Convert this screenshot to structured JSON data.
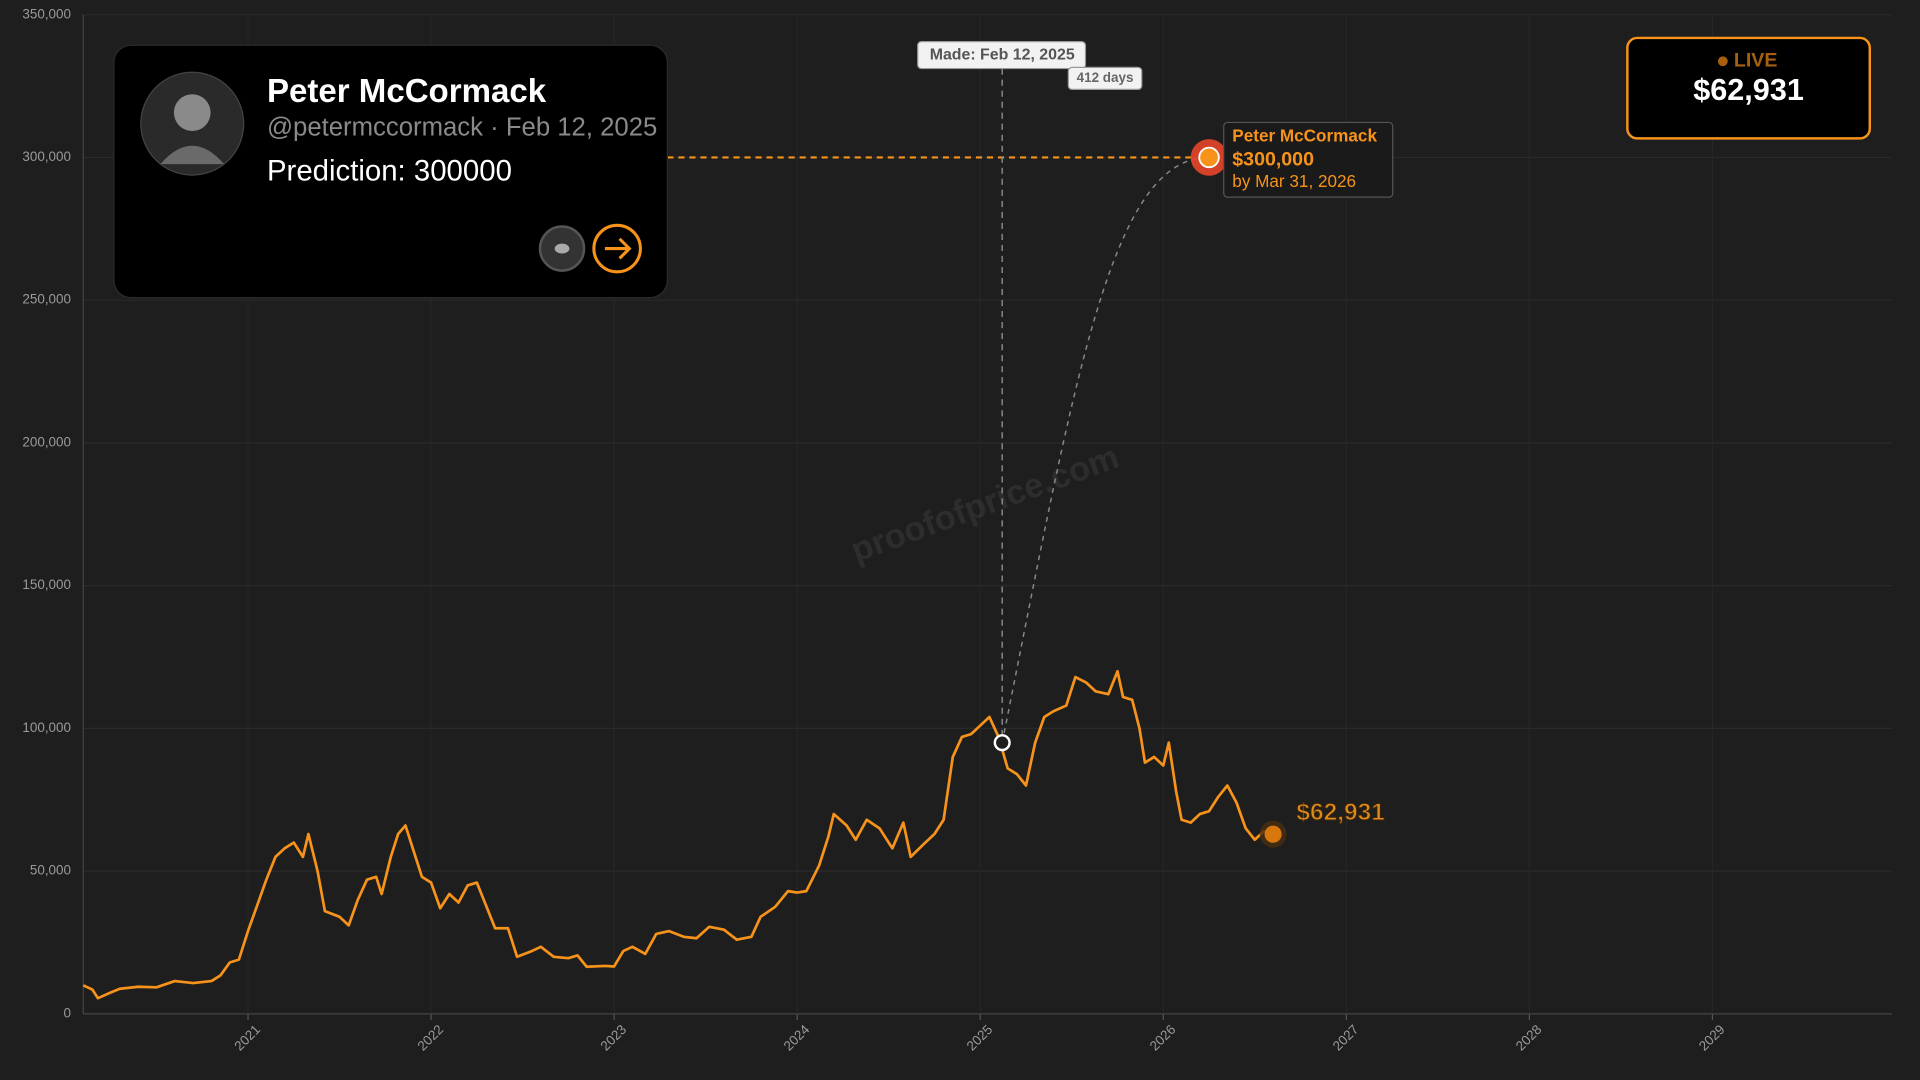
{
  "card": {
    "name": "Peter McCormack",
    "subtitle": "@petermccormack · Feb 12, 2025",
    "prediction": "Prediction: 300000"
  },
  "live": {
    "label": "LIVE"
  },
  "watermark": "proofofprice.com",
  "chart_data": {
    "type": "line",
    "color": "#f7931a",
    "grid": true,
    "xlim": [
      2020.1,
      2029.98
    ],
    "xticks": [
      2021,
      2022,
      2023,
      2024,
      2025,
      2026,
      2027,
      2028,
      2029
    ],
    "ylim": [
      0,
      350000
    ],
    "yticks": [
      0,
      {
        "value": 50000,
        "label": "50,000"
      },
      {
        "value": 100000,
        "label": "100,000"
      },
      {
        "value": 150000,
        "label": "150,000"
      },
      {
        "value": 200000,
        "label": "200,000"
      },
      {
        "value": 250000,
        "label": "250,000"
      },
      {
        "value": 300000,
        "label": "300,000"
      },
      {
        "value": 350000,
        "label": "350,000"
      }
    ],
    "x": [
      2020.1,
      2020.15,
      2020.18,
      2020.25,
      2020.3,
      2020.4,
      2020.5,
      2020.6,
      2020.7,
      2020.8,
      2020.85,
      2020.9,
      2020.95,
      2021.0,
      2021.05,
      2021.1,
      2021.15,
      2021.2,
      2021.25,
      2021.3,
      2021.33,
      2021.38,
      2021.42,
      2021.5,
      2021.55,
      2021.6,
      2021.65,
      2021.7,
      2021.73,
      2021.78,
      2021.82,
      2021.86,
      2021.9,
      2021.95,
      2022.0,
      2022.05,
      2022.1,
      2022.15,
      2022.2,
      2022.25,
      2022.3,
      2022.35,
      2022.42,
      2022.47,
      2022.55,
      2022.6,
      2022.67,
      2022.75,
      2022.8,
      2022.85,
      2022.95,
      2023.0,
      2023.05,
      2023.1,
      2023.17,
      2023.23,
      2023.3,
      2023.38,
      2023.45,
      2023.52,
      2023.6,
      2023.67,
      2023.75,
      2023.8,
      2023.88,
      2023.95,
      2024.0,
      2024.05,
      2024.12,
      2024.17,
      2024.2,
      2024.27,
      2024.32,
      2024.38,
      2024.45,
      2024.52,
      2024.58,
      2024.62,
      2024.7,
      2024.75,
      2024.8,
      2024.85,
      2024.9,
      2024.95,
      2025.0,
      2025.05,
      2025.1,
      2025.15,
      2025.2,
      2025.25,
      2025.3,
      2025.35,
      2025.4,
      2025.47,
      2025.52,
      2025.58,
      2025.63,
      2025.7,
      2025.75,
      2025.78,
      2025.83,
      2025.87,
      2025.9,
      2025.95,
      2026.0,
      2026.03,
      2026.07,
      2026.1,
      2026.15,
      2026.2,
      2026.25,
      2026.3,
      2026.35,
      2026.4,
      2026.45,
      2026.5,
      2026.55,
      2026.6
    ],
    "values": [
      10000,
      8500,
      5500,
      7500,
      8800,
      9500,
      9300,
      11500,
      10800,
      11500,
      13500,
      18000,
      19000,
      29000,
      38000,
      47000,
      55000,
      58000,
      60000,
      55000,
      63000,
      50000,
      36000,
      34000,
      31000,
      40000,
      47000,
      48000,
      42000,
      55000,
      63000,
      66000,
      58000,
      48000,
      46000,
      37000,
      42000,
      39000,
      45000,
      46000,
      38000,
      30000,
      30000,
      20000,
      22000,
      23500,
      20000,
      19500,
      20500,
      16500,
      16800,
      16600,
      22000,
      23500,
      21000,
      28000,
      29000,
      27000,
      26500,
      30500,
      29500,
      26000,
      27000,
      34000,
      37500,
      43000,
      42500,
      43000,
      52000,
      62000,
      70000,
      66000,
      61000,
      68000,
      65000,
      58000,
      67000,
      55000,
      60000,
      63000,
      68000,
      90000,
      97000,
      98000,
      101000,
      104000,
      97000,
      86000,
      84000,
      80000,
      95000,
      104000,
      106000,
      108000,
      118000,
      116000,
      113000,
      112000,
      120000,
      111000,
      110000,
      100000,
      88000,
      90000,
      87000,
      95000,
      78000,
      68000,
      67000,
      70000,
      71000,
      76000,
      80000,
      74000,
      65000,
      61000,
      64000,
      62931
    ],
    "made": {
      "label": "Made: Feb 12, 2025",
      "days": "412 days",
      "x": 2025.12,
      "value": 95000
    },
    "prediction": {
      "name": "Peter McCormack",
      "x": 2026.25,
      "value": 300000,
      "value_label": "$300,000",
      "deadline": "by Mar 31, 2026"
    },
    "current": {
      "x": 2026.6,
      "value": 62931,
      "value_label": "$62,931"
    }
  }
}
